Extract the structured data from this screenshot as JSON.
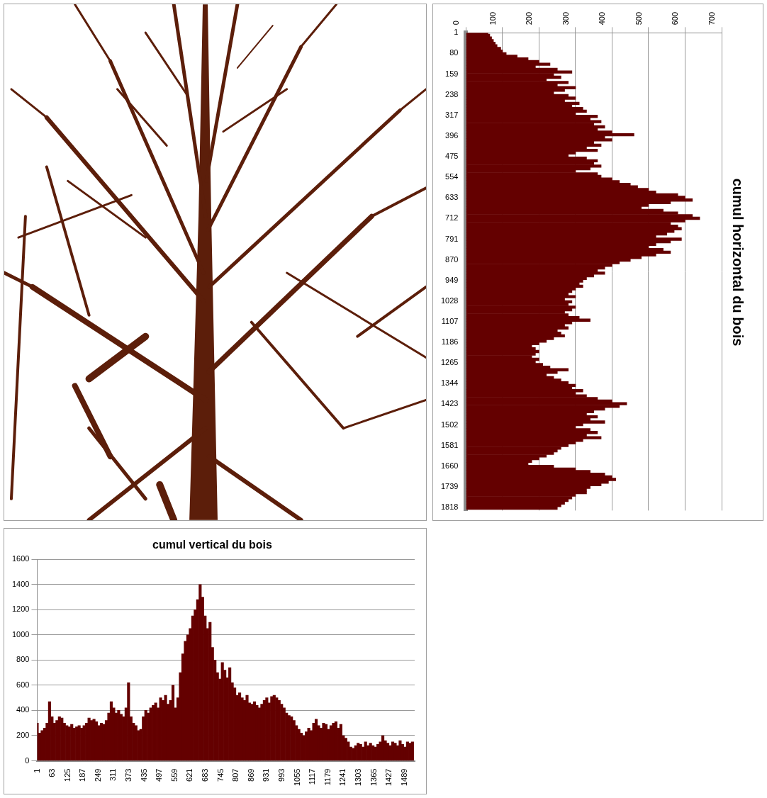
{
  "chart_data": [
    {
      "type": "bar",
      "title": "cumul horizontal du bois",
      "orientation": "horizontal",
      "color": "#640000",
      "grid": true,
      "x": [
        1,
        11,
        21,
        31,
        41,
        51,
        61,
        71,
        81,
        91,
        101,
        111,
        121,
        131,
        141,
        151,
        161,
        171,
        181,
        191,
        201,
        211,
        221,
        231,
        241,
        251,
        261,
        271,
        281,
        291,
        301,
        311,
        321,
        331,
        341,
        351,
        361,
        371,
        381,
        391,
        401,
        411,
        421,
        431,
        441,
        451,
        461,
        471,
        481,
        491,
        501,
        511,
        521,
        531,
        541,
        551,
        561,
        571,
        581,
        591,
        601,
        611,
        621,
        631,
        641,
        651,
        661,
        671,
        681,
        691,
        701,
        711,
        721,
        731,
        741,
        751,
        761,
        771,
        781,
        791,
        801,
        811,
        821,
        831,
        841,
        851,
        861,
        871,
        881,
        891,
        901,
        911,
        921,
        931,
        941,
        951,
        961,
        971,
        981,
        991,
        1001,
        1011,
        1021,
        1031,
        1041,
        1051,
        1061,
        1071,
        1081,
        1091,
        1101,
        1111,
        1121,
        1131,
        1141,
        1151,
        1161,
        1171,
        1181,
        1191,
        1201,
        1211,
        1221,
        1231,
        1241,
        1251,
        1261,
        1271,
        1281,
        1291,
        1301,
        1311,
        1321,
        1331,
        1341,
        1351,
        1361,
        1371,
        1381,
        1391,
        1401,
        1411,
        1421,
        1431,
        1441,
        1451,
        1461,
        1471,
        1481,
        1491,
        1501,
        1511,
        1521,
        1531,
        1541,
        1551,
        1561,
        1571,
        1581,
        1591,
        1601,
        1611,
        1621,
        1631,
        1641,
        1651,
        1661,
        1671,
        1681,
        1691,
        1701,
        1711,
        1721,
        1731,
        1741,
        1751,
        1761,
        1771,
        1781,
        1791,
        1801,
        1811,
        1821
      ],
      "values": [
        60,
        65,
        70,
        75,
        80,
        85,
        95,
        100,
        110,
        140,
        170,
        200,
        230,
        190,
        250,
        290,
        240,
        260,
        220,
        280,
        250,
        300,
        270,
        240,
        280,
        300,
        270,
        310,
        290,
        320,
        330,
        300,
        360,
        340,
        370,
        350,
        380,
        360,
        400,
        460,
        380,
        400,
        350,
        370,
        330,
        360,
        300,
        280,
        330,
        360,
        350,
        370,
        340,
        300,
        360,
        370,
        400,
        420,
        450,
        470,
        500,
        520,
        580,
        600,
        620,
        560,
        500,
        480,
        540,
        580,
        620,
        640,
        600,
        560,
        580,
        590,
        570,
        550,
        520,
        590,
        560,
        520,
        500,
        540,
        560,
        520,
        480,
        450,
        420,
        400,
        380,
        360,
        380,
        350,
        330,
        320,
        310,
        320,
        300,
        290,
        280,
        300,
        270,
        290,
        280,
        300,
        290,
        270,
        280,
        310,
        340,
        290,
        270,
        280,
        250,
        260,
        270,
        240,
        220,
        200,
        180,
        190,
        200,
        190,
        180,
        200,
        190,
        210,
        230,
        280,
        250,
        220,
        240,
        260,
        280,
        300,
        290,
        320,
        300,
        330,
        360,
        400,
        440,
        420,
        380,
        350,
        330,
        360,
        340,
        380,
        320,
        300,
        340,
        360,
        330,
        370,
        320,
        300,
        280,
        260,
        250,
        240,
        220,
        200,
        180,
        170,
        240,
        300,
        340,
        380,
        400,
        410,
        390,
        370,
        340,
        330,
        330,
        300,
        290,
        280,
        270,
        260,
        250
      ],
      "xlim": [
        1,
        1830
      ],
      "xticks": [
        1,
        80,
        159,
        238,
        317,
        396,
        475,
        554,
        633,
        712,
        791,
        870,
        949,
        1028,
        1107,
        1186,
        1265,
        1344,
        1423,
        1502,
        1581,
        1660,
        1739,
        1818
      ],
      "ylim": [
        0,
        700
      ],
      "yticks": [
        0,
        100,
        200,
        300,
        400,
        500,
        600,
        700
      ]
    },
    {
      "type": "bar",
      "title": "cumul vertical du bois",
      "color": "#640000",
      "grid": true,
      "x": [
        1,
        11,
        21,
        31,
        41,
        51,
        61,
        71,
        81,
        91,
        101,
        111,
        121,
        131,
        141,
        151,
        161,
        171,
        181,
        191,
        201,
        211,
        221,
        231,
        241,
        251,
        261,
        271,
        281,
        291,
        301,
        311,
        321,
        331,
        341,
        351,
        361,
        371,
        381,
        391,
        401,
        411,
        421,
        431,
        441,
        451,
        461,
        471,
        481,
        491,
        501,
        511,
        521,
        531,
        541,
        551,
        561,
        571,
        581,
        591,
        601,
        611,
        621,
        631,
        641,
        651,
        661,
        671,
        681,
        691,
        701,
        711,
        721,
        731,
        741,
        751,
        761,
        771,
        781,
        791,
        801,
        811,
        821,
        831,
        841,
        851,
        861,
        871,
        881,
        891,
        901,
        911,
        921,
        931,
        941,
        951,
        961,
        971,
        981,
        991,
        1001,
        1011,
        1021,
        1031,
        1041,
        1051,
        1061,
        1071,
        1081,
        1091,
        1101,
        1111,
        1121,
        1131,
        1141,
        1151,
        1161,
        1171,
        1181,
        1191,
        1201,
        1211,
        1221,
        1231,
        1241,
        1251,
        1261,
        1271,
        1281,
        1291,
        1301,
        1311,
        1321,
        1331,
        1341,
        1351,
        1361,
        1371,
        1381,
        1391,
        1401,
        1411,
        1421,
        1431,
        1441,
        1451,
        1461,
        1471,
        1481,
        1491,
        1501,
        1511,
        1521
      ],
      "values": [
        300,
        220,
        240,
        260,
        300,
        470,
        350,
        300,
        320,
        350,
        340,
        300,
        280,
        270,
        290,
        260,
        270,
        280,
        260,
        280,
        300,
        340,
        320,
        330,
        310,
        280,
        300,
        290,
        320,
        380,
        470,
        420,
        380,
        400,
        370,
        350,
        420,
        620,
        350,
        300,
        280,
        240,
        250,
        350,
        400,
        380,
        420,
        440,
        460,
        420,
        500,
        480,
        520,
        450,
        480,
        600,
        420,
        500,
        700,
        850,
        950,
        1000,
        1050,
        1150,
        1200,
        1280,
        1400,
        1300,
        1150,
        1050,
        1100,
        900,
        800,
        700,
        650,
        780,
        720,
        660,
        740,
        620,
        580,
        520,
        540,
        500,
        480,
        520,
        460,
        450,
        470,
        440,
        420,
        450,
        480,
        500,
        460,
        510,
        520,
        500,
        480,
        450,
        420,
        380,
        360,
        350,
        320,
        280,
        250,
        220,
        200,
        230,
        260,
        240,
        300,
        330,
        280,
        260,
        300,
        290,
        250,
        280,
        300,
        310,
        260,
        290,
        200,
        180,
        150,
        110,
        100,
        120,
        140,
        130,
        110,
        150,
        120,
        140,
        120,
        110,
        130,
        150,
        200,
        160,
        140,
        120,
        150,
        140,
        120,
        160,
        130,
        110,
        150,
        140,
        150
      ],
      "xlim": [
        1,
        1530
      ],
      "xticks": [
        1,
        63,
        125,
        187,
        249,
        311,
        373,
        435,
        497,
        559,
        621,
        683,
        745,
        807,
        869,
        931,
        993,
        1055,
        1117,
        1179,
        1241,
        1303,
        1365,
        1427,
        1489
      ],
      "ylim": [
        0,
        1600
      ],
      "yticks": [
        0,
        200,
        400,
        600,
        800,
        1000,
        1200,
        1400,
        1600
      ]
    }
  ]
}
